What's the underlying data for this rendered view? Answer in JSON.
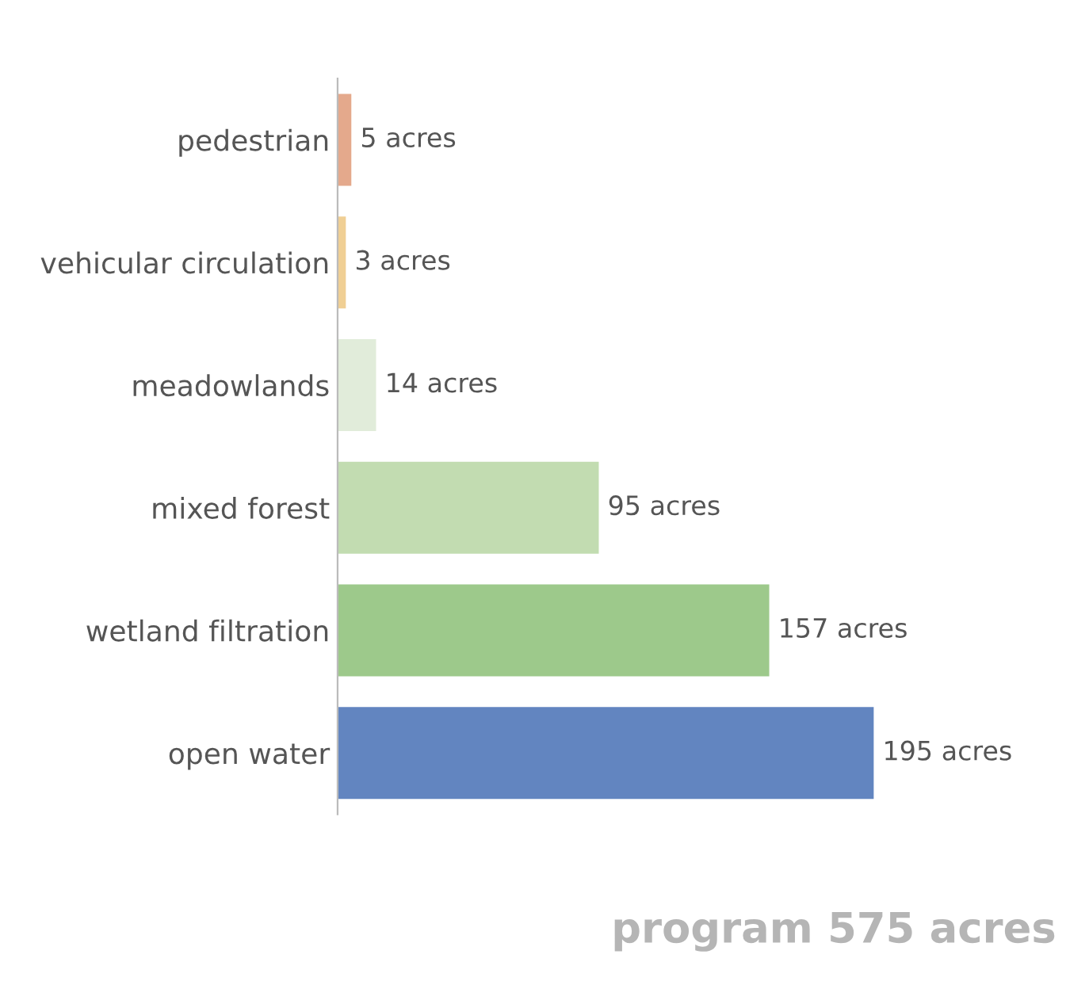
{
  "chart_data": {
    "type": "bar",
    "orientation": "horizontal",
    "title": "program 575 acres",
    "categories": [
      "pedestrian",
      "vehicular circulation",
      "meadowlands",
      "mixed forest",
      "wetland filtration",
      "open water"
    ],
    "values": [
      5,
      3,
      14,
      95,
      157,
      195
    ],
    "value_labels": [
      "5 acres",
      "3 acres",
      "14 acres",
      "95 acres",
      "157 acres",
      "195 acres"
    ],
    "colors": [
      "#e4a98c",
      "#f0cf94",
      "#e1ecda",
      "#c2dcb1",
      "#9dc98b",
      "#6285c0"
    ]
  }
}
